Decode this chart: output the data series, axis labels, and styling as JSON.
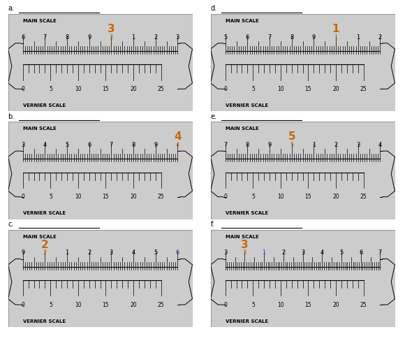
{
  "panels": [
    {
      "label": "a.",
      "main_scale_labels": [
        [
          "6",
          "black",
          6
        ],
        [
          "7",
          "black",
          7
        ],
        [
          "8",
          "black",
          8
        ],
        [
          "9",
          "black",
          9
        ],
        [
          "3",
          "#cc6600",
          10
        ],
        [
          "1",
          "black",
          11
        ],
        [
          "2",
          "black",
          12
        ],
        [
          "3",
          "black",
          13
        ]
      ],
      "highlight_label": {
        "text": "3",
        "color": "#cc6600",
        "size": 11,
        "bold": true,
        "idx": 4
      },
      "vernier_labels": [
        "0",
        "5",
        "10",
        "15",
        "20",
        "25"
      ],
      "col": 0,
      "row": 0
    },
    {
      "label": "b.",
      "main_scale_labels": [
        [
          "3",
          "black",
          3
        ],
        [
          "4",
          "black",
          4
        ],
        [
          "5",
          "black",
          5
        ],
        [
          "6",
          "black",
          6
        ],
        [
          "7",
          "black",
          7
        ],
        [
          "8",
          "black",
          8
        ],
        [
          "9",
          "black",
          9
        ],
        [
          "4",
          "#cc6600",
          10
        ]
      ],
      "highlight_label": {
        "text": "4",
        "color": "#cc6600",
        "size": 11,
        "bold": true,
        "idx": 7
      },
      "vernier_labels": [
        "0",
        "5",
        "10",
        "15",
        "20",
        "25"
      ],
      "col": 0,
      "row": 1
    },
    {
      "label": "c.",
      "main_scale_labels": [
        [
          "9",
          "black",
          9
        ],
        [
          "2",
          "#cc6600",
          10
        ],
        [
          "1",
          "black",
          11
        ],
        [
          "2",
          "black",
          12
        ],
        [
          "3",
          "black",
          13
        ],
        [
          "4",
          "black",
          14
        ],
        [
          "5",
          "black",
          15
        ],
        [
          "6",
          "#3333cc",
          16
        ]
      ],
      "highlight_label": {
        "text": "2",
        "color": "#cc6600",
        "size": 11,
        "bold": true,
        "idx": 1
      },
      "vernier_labels": [
        "0",
        "5",
        "10",
        "15",
        "20",
        "25"
      ],
      "col": 0,
      "row": 2
    },
    {
      "label": "d.",
      "main_scale_labels": [
        [
          "5",
          "black",
          5
        ],
        [
          "6",
          "black",
          6
        ],
        [
          "7",
          "black",
          7
        ],
        [
          "8",
          "black",
          8
        ],
        [
          "9",
          "black",
          9
        ],
        [
          "1",
          "#cc6600",
          10
        ],
        [
          "1",
          "black",
          11
        ],
        [
          "2",
          "black",
          12
        ]
      ],
      "highlight_label": {
        "text": "1",
        "color": "#cc6600",
        "size": 11,
        "bold": true,
        "idx": 5
      },
      "vernier_labels": [
        "0",
        "5",
        "10",
        "15",
        "20",
        "25"
      ],
      "col": 1,
      "row": 0
    },
    {
      "label": "e.",
      "main_scale_labels": [
        [
          "7",
          "black",
          7
        ],
        [
          "8",
          "black",
          8
        ],
        [
          "9",
          "black",
          9
        ],
        [
          "5",
          "#cc6600",
          10
        ],
        [
          "1",
          "black",
          11
        ],
        [
          "2",
          "black",
          12
        ],
        [
          "3",
          "black",
          13
        ],
        [
          "4",
          "black",
          14
        ]
      ],
      "highlight_label": {
        "text": "5",
        "color": "#cc6600",
        "size": 11,
        "bold": true,
        "idx": 3
      },
      "vernier_labels": [
        "0",
        "5",
        "10",
        "15",
        "20",
        "25"
      ],
      "col": 1,
      "row": 1
    },
    {
      "label": "f.",
      "main_scale_labels": [
        [
          "3",
          "black",
          3
        ],
        [
          "3",
          "#cc6600",
          10
        ],
        [
          "1",
          "#3355cc",
          11
        ],
        [
          "2",
          "black",
          12
        ],
        [
          "3",
          "black",
          13
        ],
        [
          "4",
          "black",
          14
        ],
        [
          "5",
          "black",
          15
        ],
        [
          "6",
          "black",
          16
        ],
        [
          "7",
          "black",
          17
        ]
      ],
      "highlight_label": {
        "text": "3",
        "color": "#cc6600",
        "size": 11,
        "bold": true,
        "idx": 1
      },
      "vernier_labels": [
        "0",
        "5",
        "10",
        "15",
        "20",
        "25"
      ],
      "col": 1,
      "row": 2
    }
  ],
  "bg_color": "#cccccc",
  "panel_bg": "#cccccc"
}
